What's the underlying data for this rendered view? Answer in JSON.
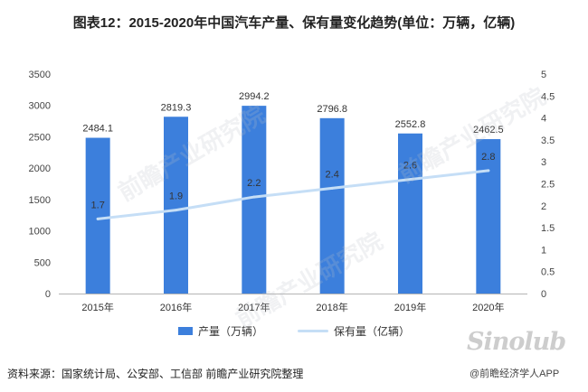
{
  "title": "图表12：2015-2020年中国汽车产量、保有量变化趋势(单位：万辆，亿辆)",
  "chart_data": {
    "type": "bar",
    "categories": [
      "2015年",
      "2016年",
      "2017年",
      "2018年",
      "2019年",
      "2020年"
    ],
    "series": [
      {
        "name": "产量（万辆）",
        "type": "bar",
        "axis": "left",
        "values": [
          2484.1,
          2819.3,
          2994.2,
          2796.8,
          2552.8,
          2462.5
        ],
        "labels": [
          "2484.1",
          "2819.3",
          "2994.2",
          "2796.8",
          "2552.8",
          "2462.5"
        ]
      },
      {
        "name": "保有量（亿辆）",
        "type": "line",
        "axis": "right",
        "values": [
          1.7,
          1.9,
          2.2,
          2.4,
          2.6,
          2.8
        ],
        "labels": [
          "1.7",
          "1.9",
          "2.2",
          "2.4",
          "2.6",
          "2.8"
        ]
      }
    ],
    "ylim_left": [
      0,
      3500
    ],
    "ylim_right": [
      0,
      5
    ],
    "yticks_left": [
      "0",
      "500",
      "1000",
      "1500",
      "2000",
      "2500",
      "3000",
      "3500"
    ],
    "yticks_right": [
      "0",
      "0.5",
      "1",
      "1.5",
      "2",
      "2.5",
      "3",
      "3.5",
      "4",
      "4.5",
      "5"
    ],
    "grid": false,
    "legend": "bottom"
  },
  "colors": {
    "bar": "#3c7fdc",
    "line": "#c5def6",
    "axis": "#b5b5b5"
  },
  "source": "资料来源：国家统计局、公安部、工信部 前瞻产业研究院整理",
  "credit": "@前瞻经济学人APP",
  "watermark": {
    "stamp": "前瞻产业研究院",
    "logo": "Sinolub"
  }
}
